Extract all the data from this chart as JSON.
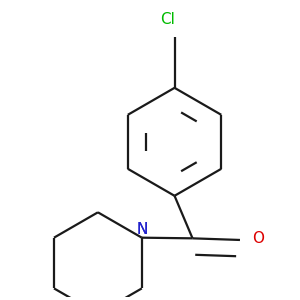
{
  "background_color": "#ffffff",
  "bond_color": "#1a1a1a",
  "cl_color": "#00bb00",
  "n_color": "#2222cc",
  "o_color": "#dd0000",
  "cl_label": "Cl",
  "n_label": "N",
  "o_label": "O",
  "line_width": 1.6,
  "font_size": 11
}
